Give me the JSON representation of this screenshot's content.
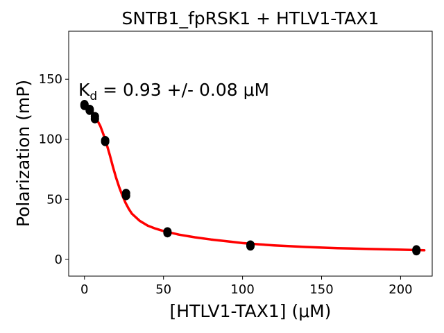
{
  "chart_data": {
    "type": "scatter",
    "title": "SNTB1_fpRSK1 + HTLV1-TAX1",
    "xlabel": "[HTLV1-TAX1] (μM)",
    "ylabel": "Polarization (mP)",
    "annotation": {
      "prefix": "K",
      "subscript": "d",
      "suffix": " = 0.93 +/- 0.08 μM"
    },
    "xlim": [
      -10,
      220
    ],
    "ylim": [
      -14,
      190
    ],
    "xticks": [
      0,
      50,
      100,
      150,
      200
    ],
    "yticks": [
      0,
      50,
      100,
      150
    ],
    "grid": false,
    "series": [
      {
        "kind": "points",
        "color": "#000000",
        "x": [
          0,
          0,
          3.3,
          3.3,
          6.6,
          6.6,
          13.1,
          13.1,
          26.3,
          26.3,
          52.5,
          52.5,
          105,
          105,
          210,
          210
        ],
        "y": [
          128,
          129,
          124,
          125,
          117,
          119,
          98,
          99,
          53,
          55,
          22,
          23,
          11,
          12,
          7,
          8
        ]
      },
      {
        "kind": "fit",
        "color": "#ff0000",
        "x": [
          0,
          2,
          4,
          6,
          8,
          10,
          12,
          14,
          16,
          18,
          20,
          22,
          24,
          26,
          28,
          30,
          35,
          40,
          45,
          50,
          60,
          70,
          80,
          90,
          100,
          110,
          120,
          140,
          160,
          180,
          200,
          215
        ],
        "y": [
          129,
          127,
          124,
          121,
          116,
          111,
          104,
          96,
          87,
          77,
          68,
          60,
          53,
          47,
          42,
          38,
          32,
          28,
          25.5,
          23.5,
          20.5,
          18.3,
          16.5,
          15,
          13.5,
          12.5,
          11.6,
          10.3,
          9.3,
          8.6,
          8,
          7.5
        ]
      }
    ]
  }
}
